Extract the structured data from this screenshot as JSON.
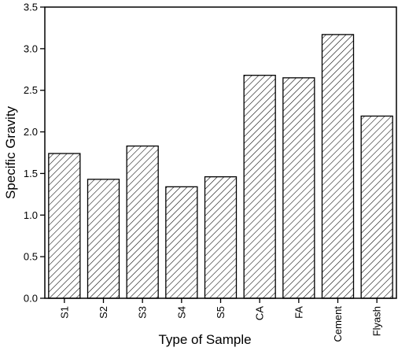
{
  "chart_data": {
    "type": "bar",
    "title": "",
    "xlabel": "Type of Sample",
    "ylabel": "Specific Gravity",
    "categories": [
      "S1",
      "S2",
      "S3",
      "S4",
      "S5",
      "CA",
      "FA",
      "Cement",
      "Flyash"
    ],
    "values": [
      1.74,
      1.43,
      1.83,
      1.34,
      1.46,
      2.68,
      2.65,
      3.17,
      2.19
    ],
    "ylim": [
      0,
      3.5
    ],
    "yticks": [
      "0.0",
      "0.5",
      "1.0",
      "1.5",
      "2.0",
      "2.5",
      "3.0",
      "3.5"
    ],
    "grid": false,
    "legend": "none",
    "bar_fill": "hatched",
    "colors": {
      "bar_stroke": "#000000",
      "hatch": "#000000",
      "axis": "#000000",
      "background": "#ffffff"
    }
  }
}
